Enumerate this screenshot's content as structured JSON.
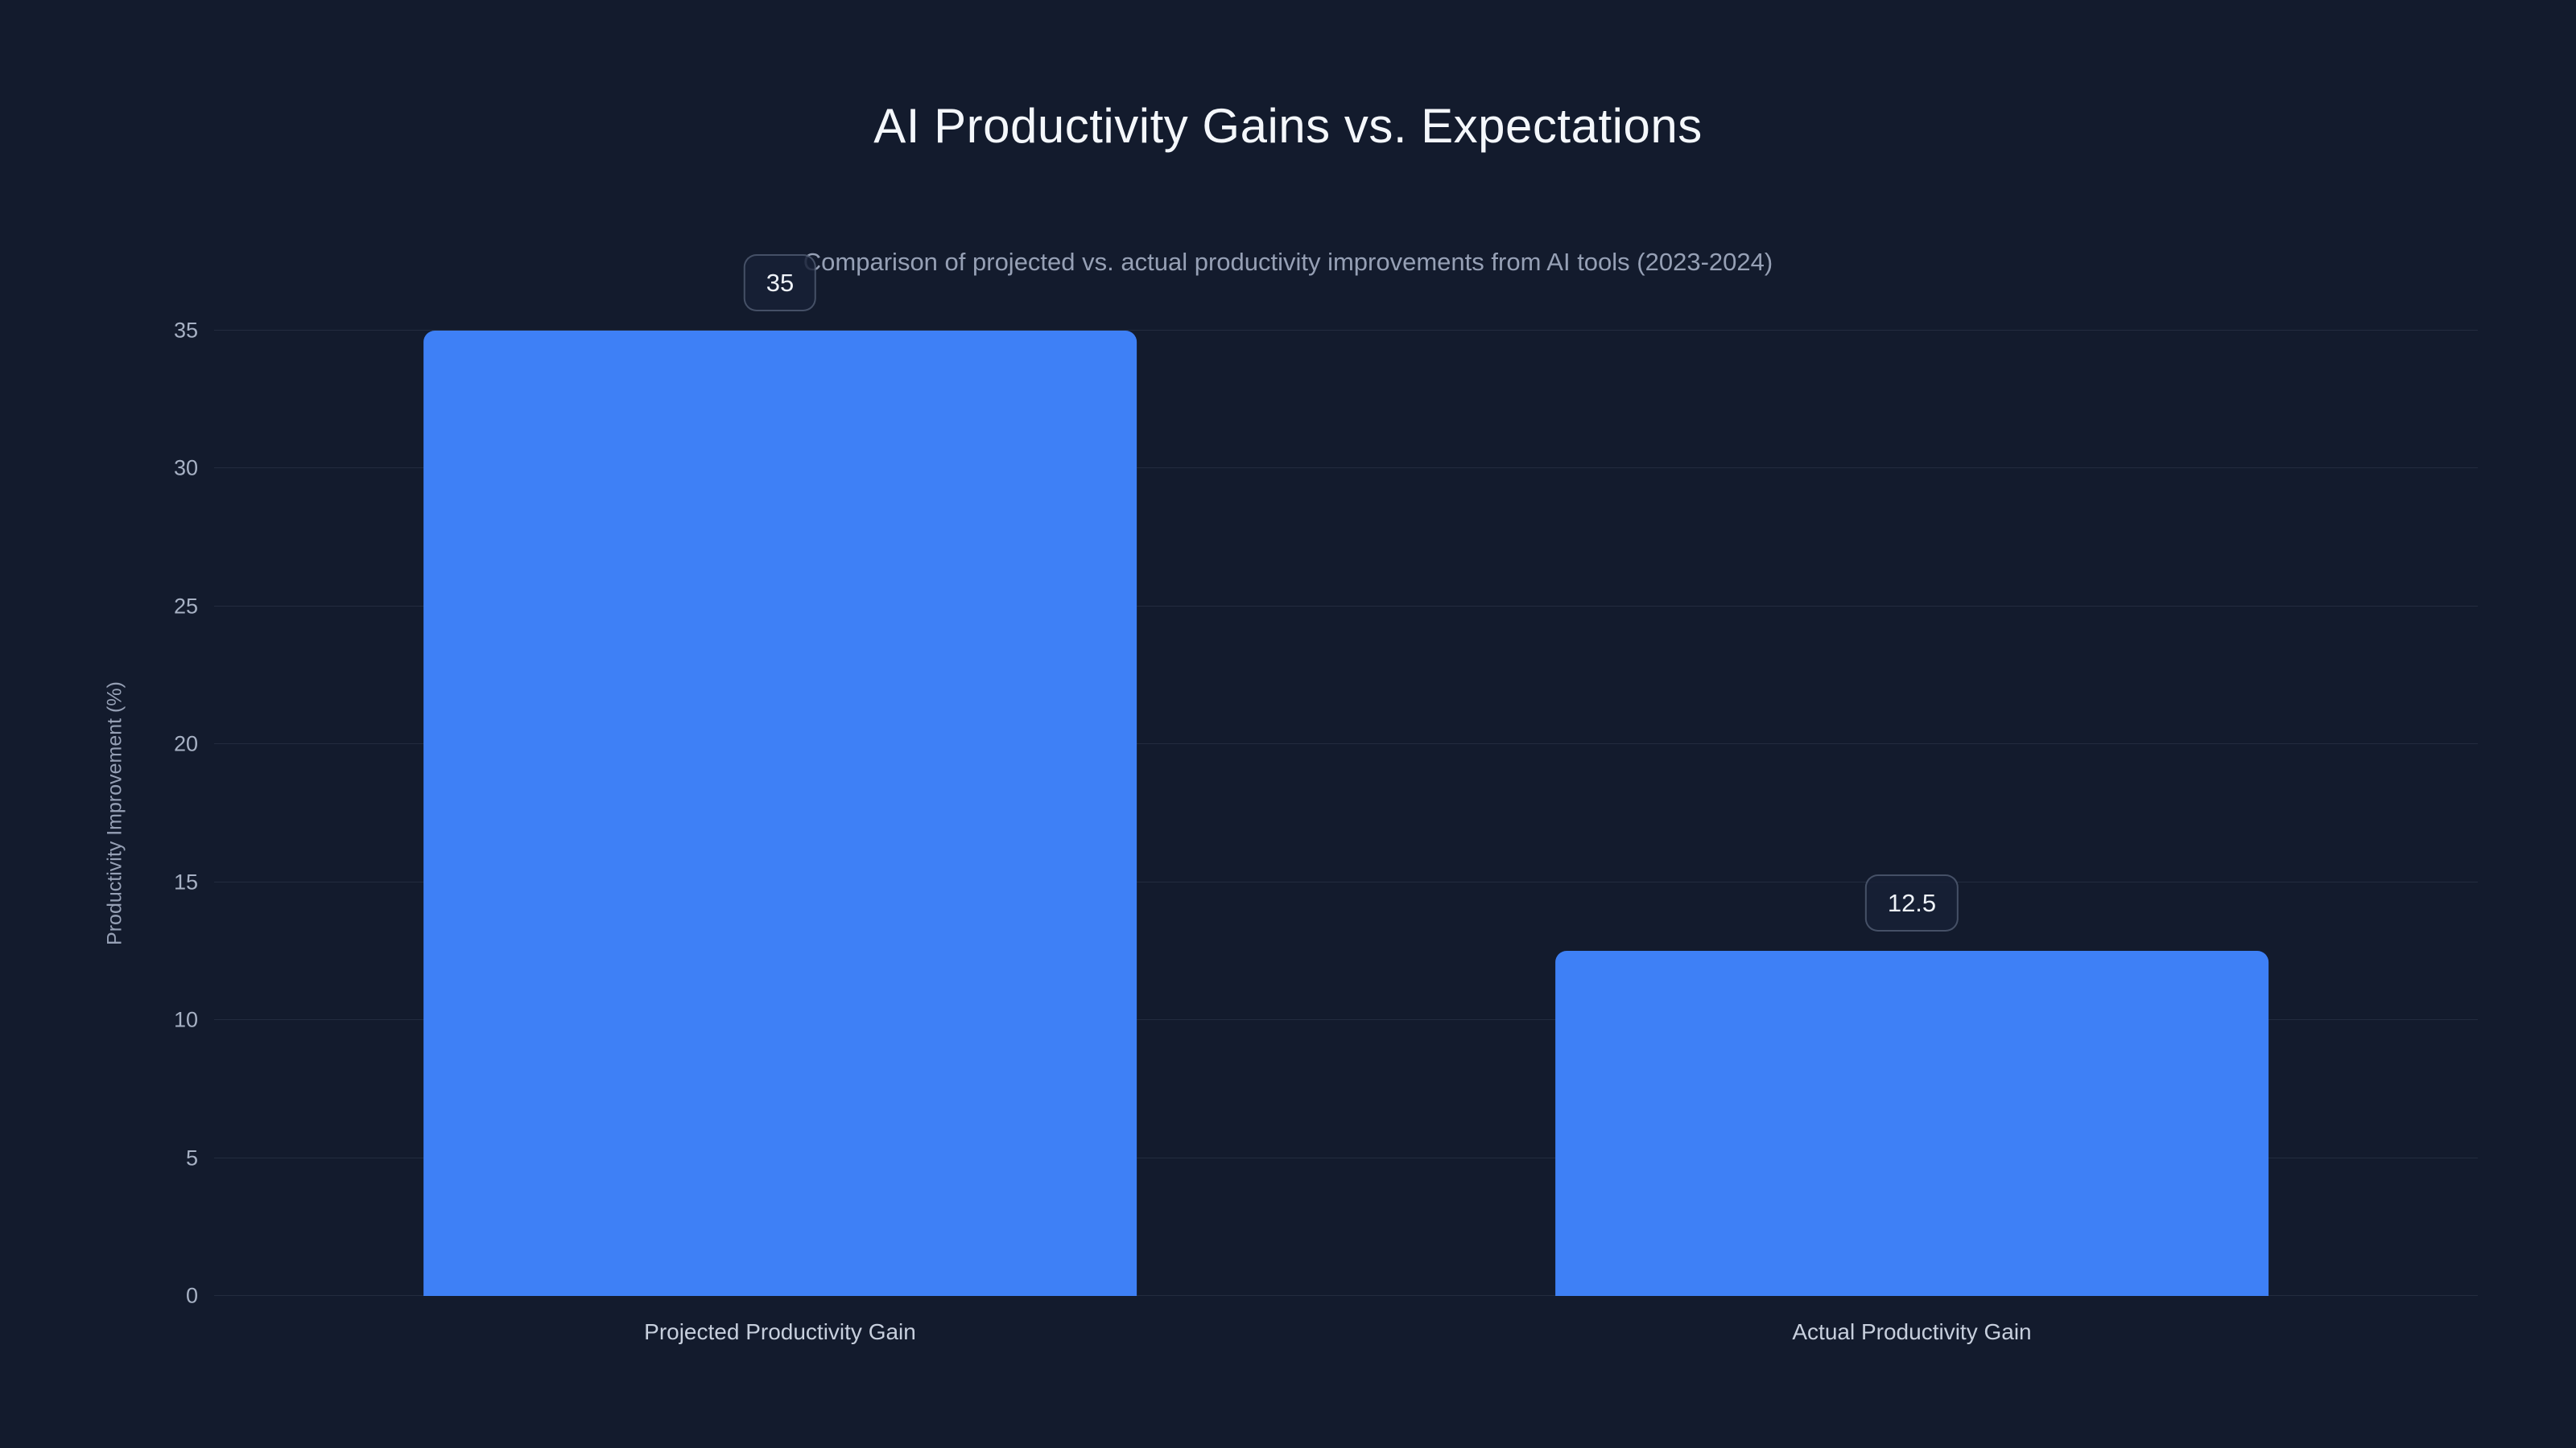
{
  "header": {
    "title": "AI Productivity Gains vs. Expectations",
    "subtitle": "Comparison of projected vs. actual productivity improvements from AI tools (2023-2024)"
  },
  "chart_data": {
    "type": "bar",
    "categories": [
      "Projected Productivity Gain",
      "Actual Productivity Gain"
    ],
    "values": [
      35,
      12.5
    ],
    "value_labels": [
      "35",
      "12.5"
    ],
    "title": "AI Productivity Gains vs. Expectations",
    "subtitle": "Comparison of projected vs. actual productivity improvements from AI tools (2023-2024)",
    "xlabel": "",
    "ylabel": "Productivity Improvement (%)",
    "ylim": [
      0,
      35
    ],
    "yticks": [
      0,
      5,
      10,
      15,
      20,
      25,
      30,
      35
    ],
    "grid": true,
    "legend": false,
    "colors": {
      "background": "#131b2d",
      "bar": "#3e80f6",
      "gridline": "rgba(148,163,184,0.13)",
      "title_text": "#f4f7fb",
      "subtitle_text": "#96a0b5",
      "axis_text": "#a7b1c4"
    }
  }
}
